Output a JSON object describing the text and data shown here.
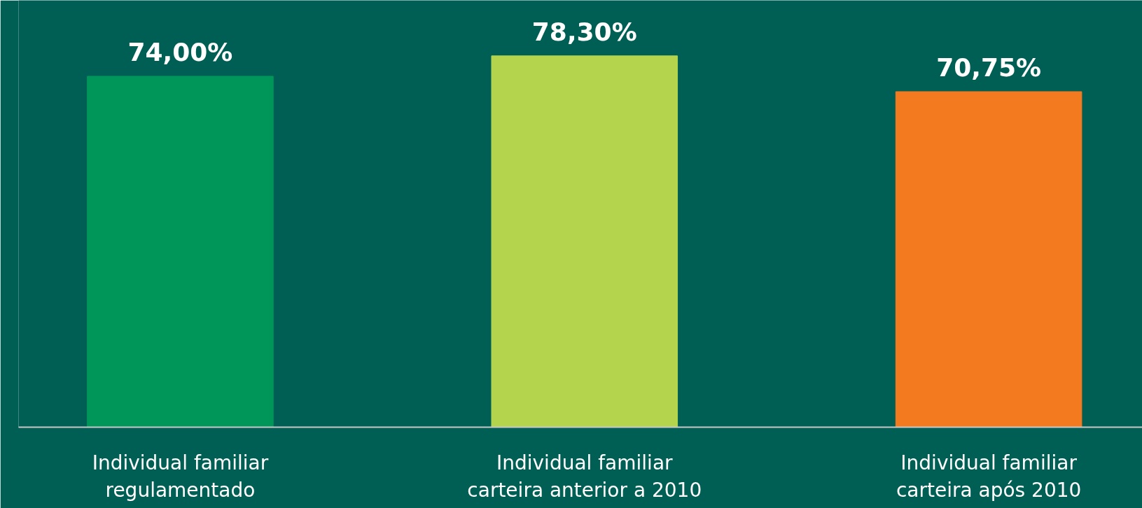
{
  "chart_data": {
    "type": "bar",
    "categories": [
      "Individual familiar\nregulamentado",
      "Individual familiar\ncarteira anterior a 2010",
      "Individual familiar\ncarteira após 2010"
    ],
    "values": [
      74.0,
      78.3,
      70.75
    ],
    "colors": [
      "#00965a",
      "#b3d44c",
      "#f47a20"
    ],
    "value_labels": [
      "74,00%",
      "78,30%",
      "70,75%"
    ],
    "ylim": [
      0,
      90
    ],
    "grid": false
  }
}
